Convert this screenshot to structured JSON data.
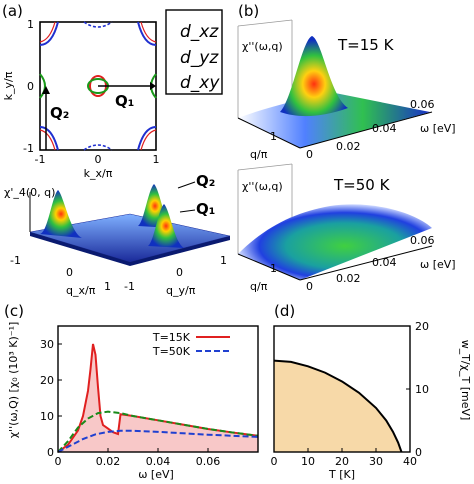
{
  "panels": {
    "a": {
      "label": "(a)",
      "top": {
        "xlabel": "k_x/π",
        "ylabel": "k_y/π",
        "xticks": [
          "-1",
          "0",
          "1"
        ],
        "yticks": [
          "1",
          "0",
          "-1"
        ],
        "legend": [
          {
            "text": "d_xz",
            "color": "#1a9a1a"
          },
          {
            "text": "d_yz",
            "color": "#e02020"
          },
          {
            "text": "d_xy",
            "color": "#2030d0"
          }
        ],
        "vectors": [
          "Q₁",
          "Q₂"
        ]
      },
      "bottom": {
        "zlabel": "χ'_4(0, q)",
        "xlabel": "q_x/π",
        "ylabel": "q_y/π",
        "xticks": [
          "-1",
          "0",
          "1"
        ],
        "yticks": [
          "-1",
          "0",
          "1"
        ],
        "peaks": [
          "Q₂",
          "Q₁"
        ]
      }
    },
    "b": {
      "label": "(b)",
      "top": {
        "zlabel": "χ''(ω,q)",
        "title": "T=15 K"
      },
      "bottom": {
        "zlabel": "χ''(ω,q)",
        "title": "T=50 K"
      },
      "qlabel": "q/π",
      "qticks": [
        "1"
      ],
      "omega_label": "ω [eV]",
      "omega_ticks": [
        "0",
        "0.02",
        "0.04",
        "0.06"
      ]
    },
    "c": {
      "label": "(c)",
      "ylabel": "χ''(ω,Q) [χ₀ (10³ K)⁻¹]",
      "xlabel": "ω [eV]"
    },
    "d": {
      "label": "(d)",
      "ylabel": "w_T/χ_T [meV]",
      "xlabel": "T [K]"
    }
  },
  "chart_data": [
    {
      "type": "line",
      "panel": "c",
      "xlabel": "ω [eV]",
      "ylabel": "χ''(ω,Q) [χ₀ (10³ K)⁻¹]",
      "xlim": [
        0,
        0.08
      ],
      "ylim": [
        0,
        35
      ],
      "xticks": [
        "0",
        "0.02",
        "0.04",
        "0.06"
      ],
      "yticks": [
        "0",
        "10",
        "20",
        "30"
      ],
      "series": [
        {
          "name": "T=15K",
          "color": "#e02020",
          "style": "solid",
          "x": [
            0,
            0.004,
            0.008,
            0.01,
            0.012,
            0.013,
            0.014,
            0.015,
            0.016,
            0.017,
            0.018,
            0.02,
            0.022,
            0.024,
            0.025,
            0.03,
            0.04,
            0.05,
            0.06,
            0.07,
            0.08
          ],
          "y": [
            0,
            2.0,
            6.0,
            10.0,
            17.0,
            23.0,
            30.0,
            27.0,
            18.0,
            10.0,
            7.5,
            6.5,
            5.5,
            5.0,
            10.5,
            10.0,
            8.8,
            7.6,
            6.4,
            5.4,
            4.5
          ]
        },
        {
          "name": "",
          "color": "#1a8a1a",
          "style": "dashed",
          "x": [
            0,
            0.004,
            0.008,
            0.012,
            0.016,
            0.02,
            0.025,
            0.03,
            0.04,
            0.05,
            0.06,
            0.07,
            0.08
          ],
          "y": [
            0,
            3.0,
            6.8,
            9.3,
            10.8,
            11.2,
            10.8,
            10.0,
            8.8,
            7.6,
            6.4,
            5.4,
            4.5
          ]
        },
        {
          "name": "T=50K",
          "color": "#2040d0",
          "style": "dashed",
          "x": [
            0,
            0.005,
            0.01,
            0.015,
            0.02,
            0.025,
            0.03,
            0.04,
            0.05,
            0.06,
            0.07,
            0.08
          ],
          "y": [
            0,
            1.8,
            3.6,
            4.9,
            5.6,
            5.9,
            5.9,
            5.6,
            5.2,
            4.8,
            4.5,
            4.2
          ]
        }
      ]
    },
    {
      "type": "area",
      "panel": "d",
      "xlabel": "T [K]",
      "ylabel": "w_T/χ_T [meV]",
      "xlim": [
        0,
        40
      ],
      "ylim": [
        0,
        20
      ],
      "xticks": [
        "0",
        "10",
        "20",
        "30",
        "40"
      ],
      "yticks": [
        "0",
        "10",
        "20"
      ],
      "fill": "#f7d9a8",
      "series": [
        {
          "name": "",
          "color": "#000000",
          "x": [
            0,
            5,
            10,
            15,
            20,
            25,
            30,
            33,
            35,
            36.5,
            37.5
          ],
          "y": [
            14.5,
            14.3,
            13.6,
            12.6,
            11.2,
            9.4,
            7.0,
            5.0,
            3.2,
            1.5,
            0
          ]
        }
      ]
    }
  ]
}
